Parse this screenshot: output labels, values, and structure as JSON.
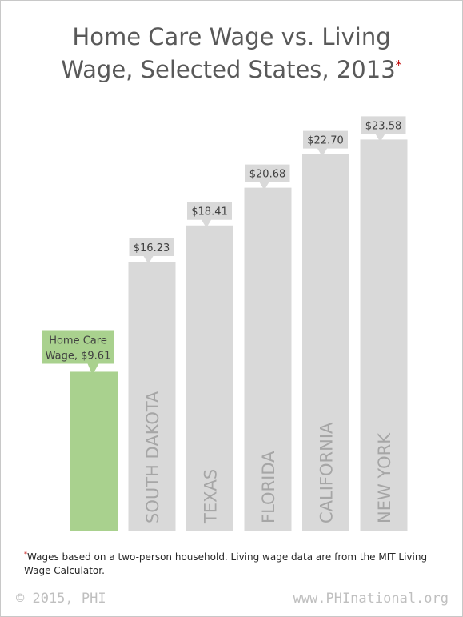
{
  "title": {
    "line1": "Home Care Wage vs. Living",
    "line2": "Wage, Selected States, 2013",
    "marker": "*"
  },
  "chart_data": {
    "type": "bar",
    "title": "Home Care Wage vs. Living Wage, Selected States, 2013",
    "categories": [
      "Home Care Wage",
      "SOUTH DAKOTA",
      "TEXAS",
      "FLORIDA",
      "CALIFORNIA",
      "NEW YORK"
    ],
    "values": [
      9.61,
      16.23,
      18.41,
      20.68,
      22.7,
      23.58
    ],
    "value_labels": [
      "Home Care Wage, $9.61",
      "$16.23",
      "$18.41",
      "$20.68",
      "$22.70",
      "$23.58"
    ],
    "home_care_label": [
      "Home Care",
      "Wage, $9.61"
    ],
    "colors": {
      "home_care": "#a9d18e",
      "state": "#d9d9d9",
      "callout_text": "#404040",
      "bar_text": "#a6a6a6"
    },
    "ylim": [
      0,
      26.2
    ],
    "grid": false,
    "legend": "none"
  },
  "footnote": {
    "marker": "*",
    "text": "Wages based on a two-person household. Living wage data are from the MIT Living Wage Calculator."
  },
  "footer": {
    "left": "© 2015, PHI",
    "right": "www.PHInational.org"
  }
}
